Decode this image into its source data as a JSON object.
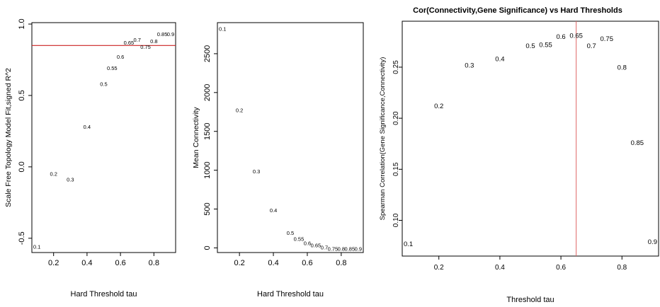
{
  "chart_data": [
    {
      "type": "scatter",
      "title": "",
      "xlabel": "Hard Threshold tau",
      "ylabel": "Scale Free Topology Model Fit,signed R^2",
      "xlim": [
        0.07,
        0.93
      ],
      "ylim": [
        -0.6,
        1.01
      ],
      "xticks": [
        "0.2",
        "0.4",
        "0.6",
        "0.8"
      ],
      "xtick_values": [
        0.2,
        0.4,
        0.6,
        0.8
      ],
      "yticks": [
        "-0.5",
        "0.0",
        "0.5",
        "1.0"
      ],
      "ytick_values": [
        -0.5,
        0.0,
        0.5,
        1.0
      ],
      "hline": {
        "value": 0.85,
        "color": "#cc2222"
      },
      "points": [
        {
          "x": 0.1,
          "y": -0.56,
          "label": "0.1"
        },
        {
          "x": 0.2,
          "y": -0.05,
          "label": "0.2"
        },
        {
          "x": 0.3,
          "y": -0.09,
          "label": "0.3"
        },
        {
          "x": 0.4,
          "y": 0.28,
          "label": "0.4"
        },
        {
          "x": 0.5,
          "y": 0.58,
          "label": "0.5"
        },
        {
          "x": 0.55,
          "y": 0.69,
          "label": "0.55"
        },
        {
          "x": 0.6,
          "y": 0.77,
          "label": "0.6"
        },
        {
          "x": 0.65,
          "y": 0.87,
          "label": "0.65"
        },
        {
          "x": 0.7,
          "y": 0.89,
          "label": "0.7"
        },
        {
          "x": 0.75,
          "y": 0.84,
          "label": "0.75"
        },
        {
          "x": 0.8,
          "y": 0.88,
          "label": "0.8"
        },
        {
          "x": 0.85,
          "y": 0.93,
          "label": "0.85"
        },
        {
          "x": 0.9,
          "y": 0.93,
          "label": "0.9"
        }
      ]
    },
    {
      "type": "scatter",
      "title": "",
      "xlabel": "Hard Threshold tau",
      "ylabel": "Mean Connectivity",
      "xlim": [
        0.07,
        0.93
      ],
      "ylim": [
        -60,
        2900
      ],
      "xticks": [
        "0.2",
        "0.4",
        "0.6",
        "0.8"
      ],
      "xtick_values": [
        0.2,
        0.4,
        0.6,
        0.8
      ],
      "yticks": [
        "0",
        "500",
        "1000",
        "1500",
        "2000",
        "2500"
      ],
      "ytick_values": [
        0,
        500,
        1000,
        1500,
        2000,
        2500
      ],
      "points": [
        {
          "x": 0.1,
          "y": 2820,
          "label": "0.1"
        },
        {
          "x": 0.2,
          "y": 1770,
          "label": "0.2"
        },
        {
          "x": 0.3,
          "y": 985,
          "label": "0.3"
        },
        {
          "x": 0.4,
          "y": 485,
          "label": "0.4"
        },
        {
          "x": 0.5,
          "y": 190,
          "label": "0.5"
        },
        {
          "x": 0.55,
          "y": 115,
          "label": "0.55"
        },
        {
          "x": 0.6,
          "y": 60,
          "label": "0.6"
        },
        {
          "x": 0.65,
          "y": 30,
          "label": "0.65"
        },
        {
          "x": 0.7,
          "y": 5,
          "label": "0.7"
        },
        {
          "x": 0.75,
          "y": -15,
          "label": "0.75"
        },
        {
          "x": 0.8,
          "y": -15,
          "label": "0.8"
        },
        {
          "x": 0.85,
          "y": -15,
          "label": "0.85"
        },
        {
          "x": 0.9,
          "y": -15,
          "label": "0.9"
        }
      ]
    },
    {
      "type": "scatter",
      "title": "Cor(Connectivity,Gene Significance) vs Hard Thresholds",
      "xlabel": "Threshold tau",
      "ylabel": "Spearman Correlation(Gene Significance,Connectivity)",
      "xlim": [
        0.08,
        0.92
      ],
      "ylim": [
        0.065,
        0.295
      ],
      "xticks": [
        "0.2",
        "0.4",
        "0.6",
        "0.8"
      ],
      "xtick_values": [
        0.2,
        0.4,
        0.6,
        0.8
      ],
      "yticks": [
        "0.10",
        "0.15",
        "0.20",
        "0.25"
      ],
      "ytick_values": [
        0.1,
        0.15,
        0.2,
        0.25
      ],
      "vline": {
        "value": 0.65,
        "color": "#e06666"
      },
      "points": [
        {
          "x": 0.1,
          "y": 0.077,
          "label": "0.1"
        },
        {
          "x": 0.2,
          "y": 0.212,
          "label": "0.2"
        },
        {
          "x": 0.3,
          "y": 0.252,
          "label": "0.3"
        },
        {
          "x": 0.4,
          "y": 0.258,
          "label": "0.4"
        },
        {
          "x": 0.5,
          "y": 0.271,
          "label": "0.5"
        },
        {
          "x": 0.55,
          "y": 0.272,
          "label": "0.55"
        },
        {
          "x": 0.6,
          "y": 0.28,
          "label": "0.6"
        },
        {
          "x": 0.65,
          "y": 0.281,
          "label": "0.65"
        },
        {
          "x": 0.7,
          "y": 0.271,
          "label": "0.7"
        },
        {
          "x": 0.75,
          "y": 0.278,
          "label": "0.75"
        },
        {
          "x": 0.8,
          "y": 0.25,
          "label": "0.8"
        },
        {
          "x": 0.85,
          "y": 0.176,
          "label": "0.85"
        },
        {
          "x": 0.9,
          "y": 0.079,
          "label": "0.9"
        }
      ]
    }
  ]
}
